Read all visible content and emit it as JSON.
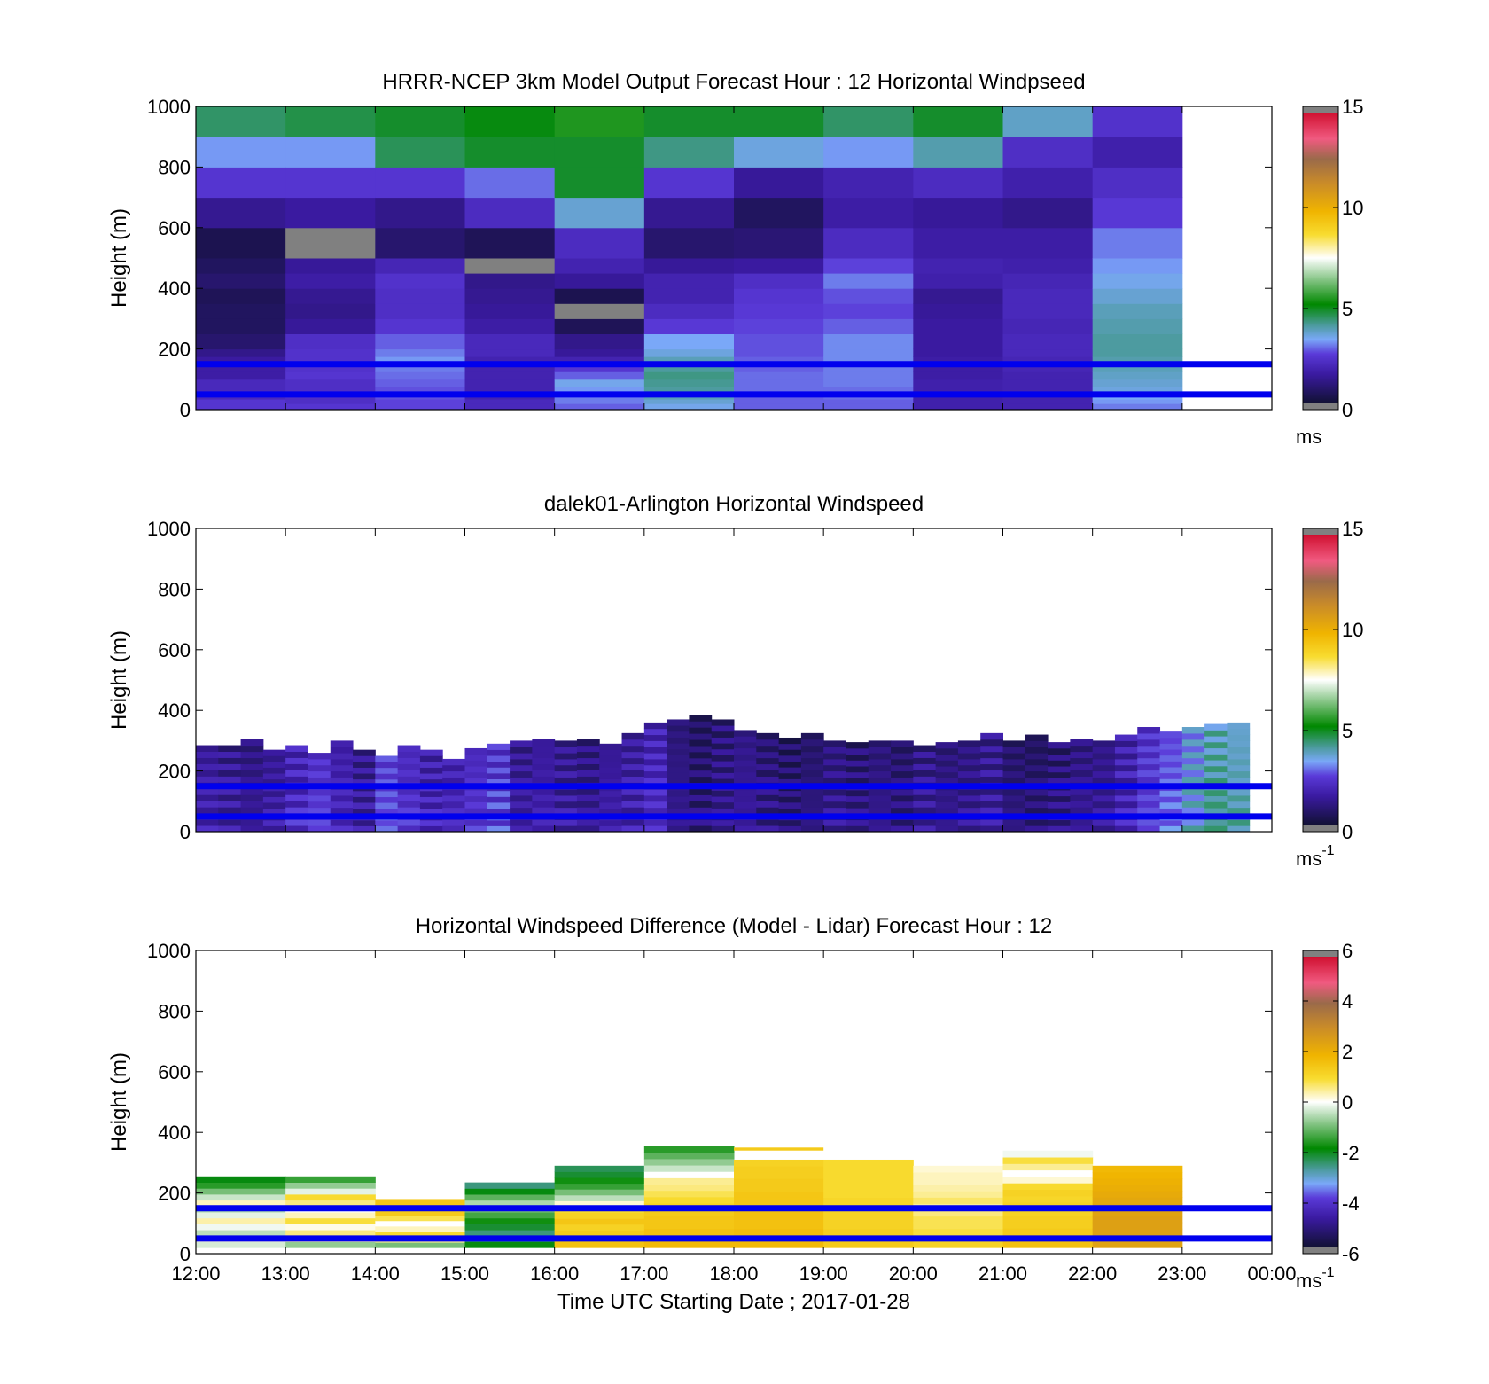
{
  "chart_data": [
    {
      "id": "model",
      "type": "heatmap",
      "title": "HRRR-NCEP 3km Model Output   Forecast Hour : 12 Horizontal Windpseed",
      "ylabel": "Height (m)",
      "ylim": [
        0,
        1000
      ],
      "yticks": [
        0,
        200,
        400,
        600,
        800,
        1000
      ],
      "xlim": [
        12,
        24
      ],
      "xticks": [
        12,
        13,
        14,
        15,
        16,
        17,
        18,
        19,
        20,
        21,
        22,
        23,
        24
      ],
      "colorbar": {
        "min": 0,
        "max": 15,
        "ticks": [
          0,
          5,
          10,
          15
        ],
        "unit": "ms",
        "unit_sup": ""
      },
      "level_lines_m": [
        50,
        150
      ],
      "height_edges_m": [
        0,
        20,
        35,
        55,
        75,
        100,
        125,
        150,
        175,
        200,
        250,
        300,
        350,
        400,
        450,
        500,
        600,
        700,
        800,
        900,
        1000
      ],
      "x_edges_utc": [
        12,
        13,
        14,
        15,
        16,
        17,
        18,
        19,
        20,
        21,
        22,
        23
      ],
      "columns_ms": [
        [
          2.4,
          2.4,
          2.0,
          2.0,
          2.0,
          1.6,
          1.6,
          1.5,
          1.2,
          0.8,
          0.6,
          0.6,
          0.5,
          0.8,
          0.6,
          0.4,
          1.3,
          2.4,
          3.2,
          4.4
        ],
        [
          2.4,
          2.2,
          2.2,
          2.2,
          2.2,
          2.4,
          2.3,
          2.3,
          2.3,
          2.2,
          1.4,
          1.2,
          1.3,
          1.6,
          1.4,
          0.0,
          1.5,
          2.4,
          3.2,
          4.6
        ],
        [
          2.6,
          2.6,
          2.7,
          2.7,
          2.8,
          2.9,
          3.0,
          3.2,
          3.0,
          2.8,
          2.4,
          2.2,
          2.2,
          2.3,
          1.9,
          0.8,
          1.2,
          2.4,
          4.5,
          4.8
        ],
        [
          2.0,
          2.0,
          1.8,
          1.8,
          1.8,
          1.8,
          1.8,
          1.8,
          2.0,
          2.0,
          1.6,
          1.4,
          1.3,
          1.2,
          0.0,
          0.5,
          2.1,
          2.9,
          4.8,
          5.0
        ],
        [
          2.8,
          3.0,
          3.0,
          3.2,
          3.4,
          2.8,
          2.4,
          1.8,
          1.4,
          1.2,
          0.5,
          0.0,
          0.4,
          1.4,
          1.8,
          2.1,
          3.6,
          4.8,
          4.8,
          5.4
        ],
        [
          3.4,
          3.6,
          3.8,
          4.0,
          4.1,
          4.2,
          4.0,
          3.8,
          3.5,
          3.3,
          2.5,
          2.1,
          1.8,
          1.8,
          1.4,
          0.8,
          1.3,
          2.4,
          4.2,
          4.8
        ],
        [
          2.8,
          2.8,
          2.8,
          2.9,
          2.9,
          2.9,
          2.8,
          2.8,
          2.7,
          2.7,
          2.6,
          2.5,
          2.4,
          2.2,
          1.5,
          0.9,
          0.6,
          1.4,
          3.5,
          4.8
        ],
        [
          2.8,
          2.8,
          2.9,
          2.9,
          3.0,
          3.0,
          3.0,
          3.1,
          3.1,
          3.1,
          2.8,
          2.6,
          2.7,
          3.0,
          2.6,
          2.1,
          1.6,
          1.8,
          3.2,
          4.4
        ],
        [
          1.7,
          1.7,
          1.7,
          1.7,
          1.7,
          1.6,
          1.6,
          1.6,
          1.5,
          1.5,
          1.5,
          1.4,
          1.3,
          1.7,
          1.8,
          1.6,
          1.4,
          2.1,
          3.9,
          4.8
        ],
        [
          1.8,
          1.8,
          1.8,
          1.8,
          1.8,
          1.8,
          1.9,
          1.9,
          2.0,
          2.0,
          1.9,
          2.0,
          2.0,
          1.9,
          1.7,
          1.6,
          1.2,
          1.7,
          2.2,
          3.7
        ],
        [
          3.0,
          3.2,
          3.3,
          3.5,
          3.6,
          3.7,
          3.8,
          3.9,
          4.0,
          4.0,
          3.9,
          3.8,
          3.6,
          3.4,
          3.2,
          3.0,
          2.5,
          2.2,
          1.7,
          2.3
        ]
      ]
    },
    {
      "id": "lidar",
      "type": "heatmap",
      "title": "dalek01-Arlington  Horizontal Windspeed",
      "ylabel": "Height (m)",
      "ylim": [
        0,
        1000
      ],
      "yticks": [
        0,
        200,
        400,
        600,
        800,
        1000
      ],
      "xlim": [
        12,
        24
      ],
      "xticks": [
        12,
        13,
        14,
        15,
        16,
        17,
        18,
        19,
        20,
        21,
        22,
        23,
        24
      ],
      "colorbar": {
        "min": 0,
        "max": 15,
        "ticks": [
          0,
          5,
          10,
          15
        ],
        "unit": "ms",
        "unit_sup": "-1"
      },
      "level_lines_m": [
        50,
        150
      ],
      "column_width_h": 0.25,
      "columns": [
        {
          "t": 12.0,
          "top": 285,
          "base": 1.8
        },
        {
          "t": 12.25,
          "top": 285,
          "base": 1.6
        },
        {
          "t": 12.5,
          "top": 305,
          "base": 1.4
        },
        {
          "t": 12.75,
          "top": 270,
          "base": 1.7
        },
        {
          "t": 13.0,
          "top": 285,
          "base": 2.2
        },
        {
          "t": 13.25,
          "top": 260,
          "base": 2.6
        },
        {
          "t": 13.5,
          "top": 300,
          "base": 2.0
        },
        {
          "t": 13.75,
          "top": 270,
          "base": 1.6
        },
        {
          "t": 14.0,
          "top": 250,
          "base": 2.8
        },
        {
          "t": 14.25,
          "top": 285,
          "base": 2.4
        },
        {
          "t": 14.5,
          "top": 270,
          "base": 2.0
        },
        {
          "t": 14.75,
          "top": 240,
          "base": 2.1
        },
        {
          "t": 15.0,
          "top": 275,
          "base": 2.4
        },
        {
          "t": 15.25,
          "top": 290,
          "base": 2.6
        },
        {
          "t": 15.5,
          "top": 300,
          "base": 1.6
        },
        {
          "t": 15.75,
          "top": 305,
          "base": 1.8
        },
        {
          "t": 16.0,
          "top": 300,
          "base": 1.6
        },
        {
          "t": 16.25,
          "top": 305,
          "base": 1.4
        },
        {
          "t": 16.5,
          "top": 290,
          "base": 1.7
        },
        {
          "t": 16.75,
          "top": 325,
          "base": 1.8
        },
        {
          "t": 17.0,
          "top": 360,
          "base": 2.2
        },
        {
          "t": 17.25,
          "top": 370,
          "base": 1.3
        },
        {
          "t": 17.5,
          "top": 385,
          "base": 1.0
        },
        {
          "t": 17.75,
          "top": 370,
          "base": 1.3
        },
        {
          "t": 18.0,
          "top": 335,
          "base": 1.5
        },
        {
          "t": 18.25,
          "top": 325,
          "base": 1.2
        },
        {
          "t": 18.5,
          "top": 310,
          "base": 1.0
        },
        {
          "t": 18.75,
          "top": 325,
          "base": 1.1
        },
        {
          "t": 19.0,
          "top": 300,
          "base": 1.4
        },
        {
          "t": 19.25,
          "top": 295,
          "base": 1.2
        },
        {
          "t": 19.5,
          "top": 300,
          "base": 1.3
        },
        {
          "t": 19.75,
          "top": 300,
          "base": 1.1
        },
        {
          "t": 20.0,
          "top": 285,
          "base": 1.5
        },
        {
          "t": 20.25,
          "top": 295,
          "base": 1.3
        },
        {
          "t": 20.5,
          "top": 300,
          "base": 1.4
        },
        {
          "t": 20.75,
          "top": 325,
          "base": 1.6
        },
        {
          "t": 21.0,
          "top": 300,
          "base": 1.1
        },
        {
          "t": 21.25,
          "top": 320,
          "base": 1.0
        },
        {
          "t": 21.5,
          "top": 295,
          "base": 1.2
        },
        {
          "t": 21.75,
          "top": 305,
          "base": 1.4
        },
        {
          "t": 22.0,
          "top": 300,
          "base": 1.5
        },
        {
          "t": 22.25,
          "top": 320,
          "base": 2.0
        },
        {
          "t": 22.5,
          "top": 345,
          "base": 2.6
        },
        {
          "t": 22.75,
          "top": 330,
          "base": 3.0
        },
        {
          "t": 23.0,
          "top": 345,
          "base": 3.6
        },
        {
          "t": 23.25,
          "top": 355,
          "base": 4.2
        },
        {
          "t": 23.5,
          "top": 360,
          "base": 4.0
        }
      ]
    },
    {
      "id": "difference",
      "type": "heatmap",
      "title": "Horizontal Windspeed Difference (Model - Lidar) Forecast Hour : 12",
      "xlabel": "Time UTC  Starting Date ; 2017-01-28",
      "ylabel": "Height (m)",
      "ylim": [
        0,
        1000
      ],
      "yticks": [
        0,
        200,
        400,
        600,
        800,
        1000
      ],
      "xlim": [
        12,
        24
      ],
      "xticks": [
        12,
        13,
        14,
        15,
        16,
        17,
        18,
        19,
        20,
        21,
        22,
        23,
        24
      ],
      "xticklabels": [
        "12:00",
        "13:00",
        "14:00",
        "15:00",
        "16:00",
        "17:00",
        "18:00",
        "19:00",
        "20:00",
        "21:00",
        "22:00",
        "23:00",
        "00:00"
      ],
      "colorbar": {
        "min": -6,
        "max": 6,
        "ticks": [
          -6,
          -4,
          -2,
          0,
          2,
          4,
          6
        ],
        "unit": "ms",
        "unit_sup": "-1"
      },
      "level_lines_m": [
        50,
        150
      ],
      "columns": [
        {
          "t0": 12,
          "t1": 13,
          "top": 255,
          "values": [
            -0.3,
            0.2,
            -0.5,
            -0.1,
            0.4,
            -0.2,
            -0.6,
            0.3,
            -0.4,
            -1.0,
            -1.6,
            -2.0
          ]
        },
        {
          "t0": 13,
          "t1": 14,
          "top": 255,
          "values": [
            -0.8,
            0.4,
            0.6,
            0.1,
            0.9,
            0.3,
            0.0,
            0.6,
            1.0,
            -0.2,
            -0.8,
            -1.5
          ]
        },
        {
          "t0": 14,
          "t1": 15,
          "top": 180,
          "values": [
            -1.0,
            0.5,
            1.0,
            0.3,
            0.0,
            0.8,
            1.4,
            1.6,
            1.5
          ]
        },
        {
          "t0": 15,
          "t1": 16,
          "top": 235,
          "values": [
            -2.0,
            -2.4,
            -2.6,
            -2.2,
            -1.8,
            -1.4,
            -1.0,
            -0.6,
            -1.2,
            -2.0,
            -2.6
          ]
        },
        {
          "t0": 16,
          "t1": 17,
          "top": 290,
          "values": [
            1.6,
            1.5,
            1.4,
            1.2,
            1.5,
            1.2,
            1.0,
            0.2,
            -0.5,
            -1.0,
            -1.5,
            -1.8,
            -2.2,
            -2.4
          ]
        },
        {
          "t0": 17,
          "t1": 18,
          "top": 355,
          "values": [
            1.8,
            1.7,
            1.6,
            1.5,
            1.5,
            1.4,
            1.2,
            1.0,
            0.8,
            0.6,
            0.5,
            0.0,
            -0.4,
            -0.8,
            -1.2,
            -1.6
          ]
        },
        {
          "t0": 18,
          "t1": 19,
          "top": 310,
          "values": [
            1.8,
            1.7,
            1.7,
            1.6,
            1.6,
            1.6,
            1.5,
            1.5,
            1.5,
            1.4,
            1.4,
            1.3,
            1.3,
            1.2
          ]
        },
        {
          "t0": 19,
          "t1": 20,
          "top": 310,
          "values": [
            1.4,
            1.3,
            1.3,
            1.2,
            1.2,
            1.2,
            1.1,
            1.1,
            1.0,
            1.0,
            1.0,
            1.0,
            1.0,
            1.0
          ]
        },
        {
          "t0": 20,
          "t1": 21,
          "top": 290,
          "values": [
            1.2,
            1.0,
            0.9,
            0.8,
            0.8,
            0.6,
            0.5,
            0.7,
            0.5,
            0.4,
            0.3,
            0.3,
            0.2
          ]
        },
        {
          "t0": 21,
          "t1": 22,
          "top": 340,
          "values": [
            1.6,
            1.5,
            1.4,
            1.3,
            1.3,
            1.2,
            1.2,
            1.1,
            1.2,
            1.0,
            0.2,
            0.0,
            0.5,
            0.9,
            -0.1
          ]
        },
        {
          "t0": 22,
          "t1": 23,
          "top": 290,
          "values": [
            2.4,
            2.4,
            2.5,
            2.5,
            2.5,
            2.4,
            2.4,
            2.3,
            2.2,
            2.1,
            2.0,
            1.9,
            1.8
          ]
        }
      ],
      "extra_segments": [
        {
          "t0": 18,
          "t1": 19,
          "h0": 340,
          "h1": 350,
          "value": 1.4
        }
      ]
    }
  ]
}
